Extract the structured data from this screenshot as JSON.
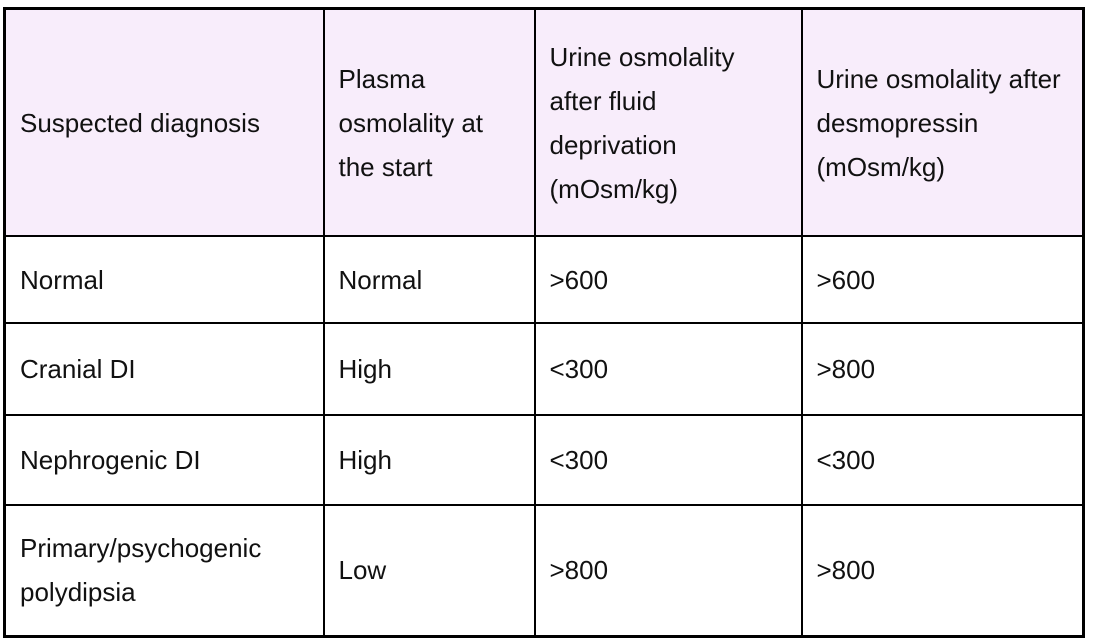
{
  "colors": {
    "page_bg": "#ffffff",
    "header_bg": "#f8edfb",
    "body_bg": "#ffffff",
    "border": "#000000",
    "text": "#111111"
  },
  "table": {
    "columns": [
      {
        "lines": [
          "Suspected diagnosis"
        ]
      },
      {
        "lines": [
          "Plasma",
          "osmolality at",
          "the start"
        ]
      },
      {
        "lines": [
          "Urine osmolality",
          "after fluid",
          "deprivation",
          "(mOsm/kg)"
        ]
      },
      {
        "lines": [
          "Urine osmolality after",
          "desmopressin",
          "(mOsm/kg)"
        ]
      }
    ],
    "rows": [
      {
        "cells": [
          "Normal",
          "Normal",
          ">600",
          ">600"
        ]
      },
      {
        "cells": [
          "Cranial DI",
          "High",
          "<300",
          ">800"
        ]
      },
      {
        "cells": [
          "Nephrogenic DI",
          "High",
          "<300",
          "<300"
        ]
      },
      {
        "cells": [
          "Primary/psychogenic polydipsia",
          "Low",
          ">800",
          ">800"
        ]
      }
    ]
  }
}
